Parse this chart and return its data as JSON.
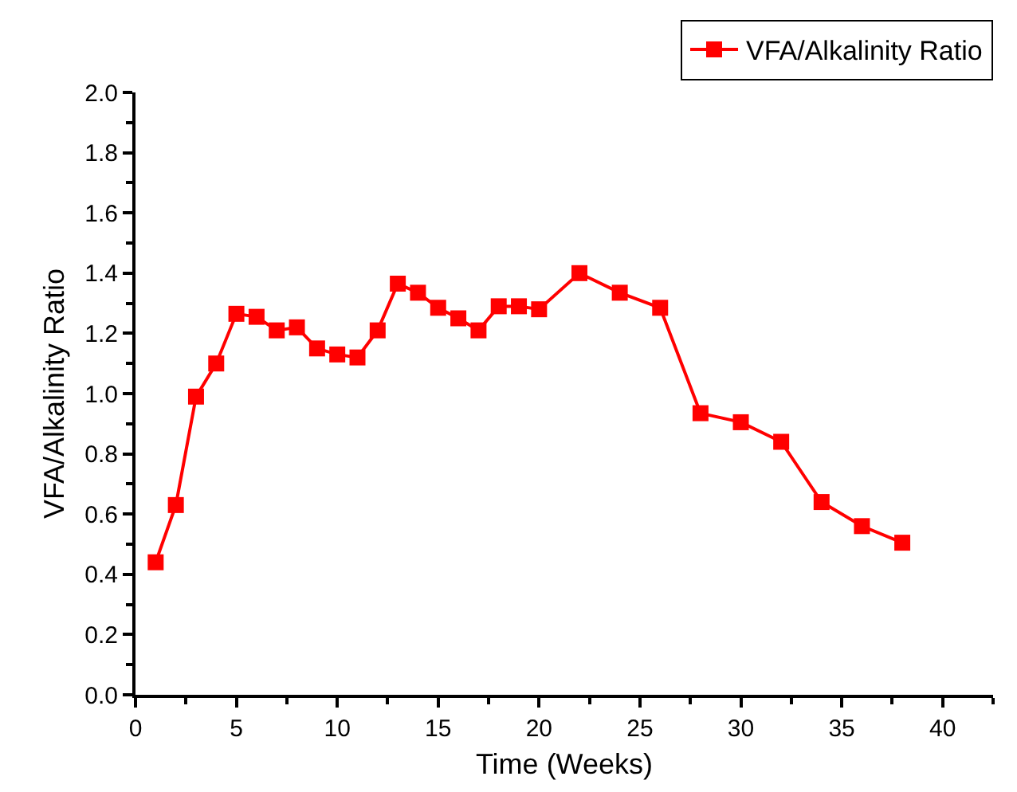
{
  "chart_data": {
    "type": "line",
    "xlabel": "Time (Weeks)",
    "ylabel": "VFA/Alkalinity Ratio",
    "x": [
      1,
      2,
      3,
      4,
      5,
      6,
      7,
      8,
      9,
      10,
      11,
      12,
      13,
      14,
      15,
      16,
      17,
      18,
      19,
      20,
      22,
      24,
      26,
      28,
      30,
      32,
      34,
      36,
      38
    ],
    "series": [
      {
        "name": "VFA/Alkalinity Ratio",
        "color": "#ff0000",
        "values": [
          0.44,
          0.63,
          0.99,
          1.1,
          1.265,
          1.255,
          1.21,
          1.22,
          1.15,
          1.13,
          1.12,
          1.21,
          1.365,
          1.335,
          1.285,
          1.25,
          1.21,
          1.29,
          1.29,
          1.28,
          1.4,
          1.335,
          1.285,
          0.935,
          0.905,
          0.84,
          0.64,
          0.56,
          0.505
        ]
      }
    ],
    "xlim": [
      0,
      42.5
    ],
    "xticks": [
      0,
      5,
      10,
      15,
      20,
      25,
      30,
      35,
      40
    ],
    "ylim": [
      0,
      2.0
    ],
    "yticks": [
      {
        "value": 0,
        "label": "0.0"
      },
      0.2,
      0.4,
      0.6,
      0.8,
      {
        "value": 1,
        "label": "1.0"
      },
      1.2,
      1.4,
      1.6,
      1.8,
      {
        "value": 2,
        "label": "2.0"
      }
    ],
    "grid": false,
    "legend": "top right",
    "marker": "square",
    "line_style": "solid"
  }
}
